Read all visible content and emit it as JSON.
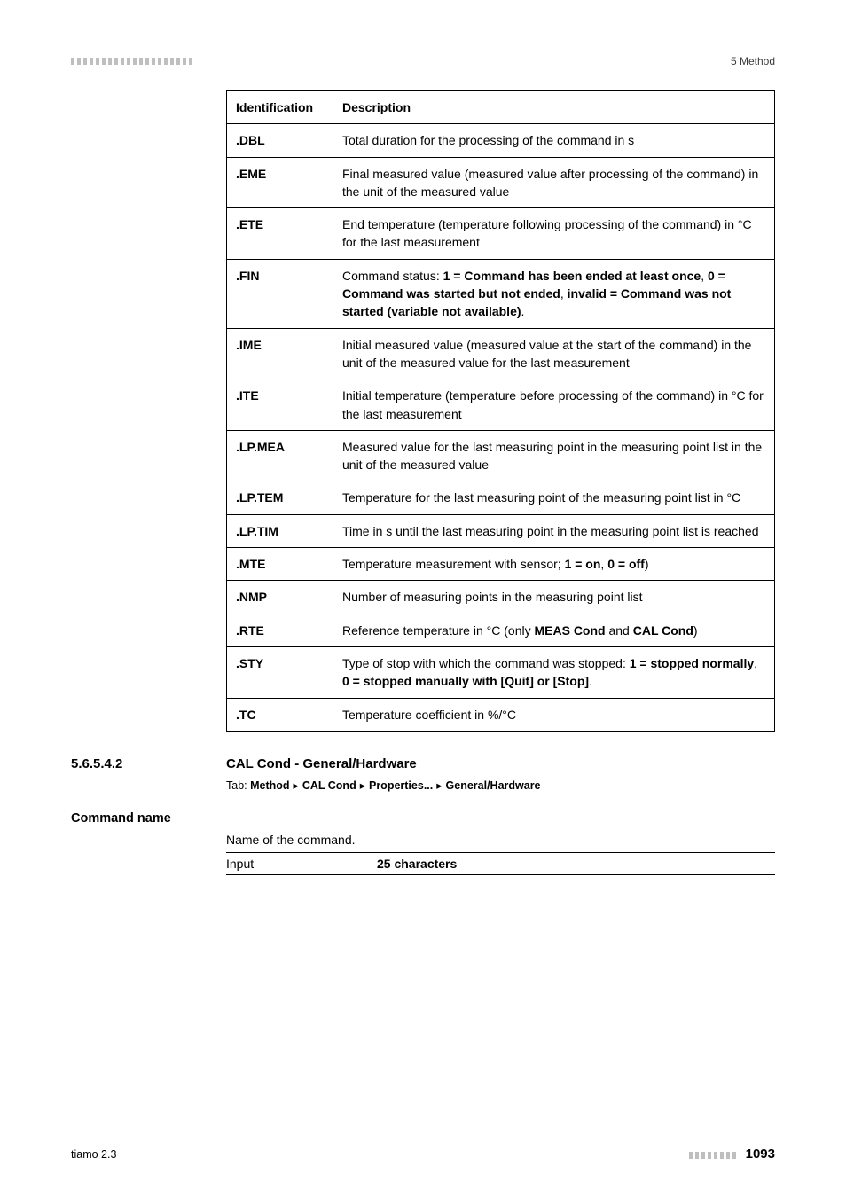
{
  "header": {
    "section_label": "5 Method"
  },
  "table": {
    "columns": [
      "Identification",
      "Description"
    ],
    "rows": [
      {
        "id": ".DBL",
        "desc": [
          {
            "t": "Total duration for the processing of the command in s"
          }
        ]
      },
      {
        "id": ".EME",
        "desc": [
          {
            "t": "Final measured value (measured value after processing of the command) in the unit of the measured value"
          }
        ]
      },
      {
        "id": ".ETE",
        "desc": [
          {
            "t": "End temperature (temperature following processing of the command) in °C for the last measurement"
          }
        ]
      },
      {
        "id": ".FIN",
        "desc": [
          {
            "t": "Command status: "
          },
          {
            "t": "1 = Command has been ended at least once",
            "b": true
          },
          {
            "t": ", "
          },
          {
            "t": "0 = Command was started but not ended",
            "b": true
          },
          {
            "t": ", "
          },
          {
            "t": "invalid = Command was not started (variable not available)",
            "b": true
          },
          {
            "t": "."
          }
        ]
      },
      {
        "id": ".IME",
        "desc": [
          {
            "t": "Initial measured value (measured value at the start of the command) in the unit of the measured value for the last measurement"
          }
        ]
      },
      {
        "id": ".ITE",
        "desc": [
          {
            "t": "Initial temperature (temperature before processing of the command) in °C for the last measurement"
          }
        ]
      },
      {
        "id": ".LP.MEA",
        "desc": [
          {
            "t": "Measured value for the last measuring point in the measuring point list in the unit of the measured value"
          }
        ]
      },
      {
        "id": ".LP.TEM",
        "desc": [
          {
            "t": "Temperature for the last measuring point of the measuring point list in °C"
          }
        ]
      },
      {
        "id": ".LP.TIM",
        "desc": [
          {
            "t": "Time in s until the last measuring point in the measuring point list is reached"
          }
        ]
      },
      {
        "id": ".MTE",
        "desc": [
          {
            "t": "Temperature measurement with sensor; "
          },
          {
            "t": "1 = on",
            "b": true
          },
          {
            "t": ", "
          },
          {
            "t": "0 = off",
            "b": true
          },
          {
            "t": ")"
          }
        ]
      },
      {
        "id": ".NMP",
        "desc": [
          {
            "t": "Number of measuring points in the measuring point list"
          }
        ]
      },
      {
        "id": ".RTE",
        "desc": [
          {
            "t": "Reference temperature in °C (only "
          },
          {
            "t": "MEAS Cond",
            "b": true
          },
          {
            "t": " and "
          },
          {
            "t": "CAL Cond",
            "b": true
          },
          {
            "t": ")"
          }
        ]
      },
      {
        "id": ".STY",
        "desc": [
          {
            "t": "Type of stop with which the command was stopped: "
          },
          {
            "t": "1 = stopped normally",
            "b": true
          },
          {
            "t": ", "
          },
          {
            "t": "0 = stopped manually with [Quit] or [Stop]",
            "b": true
          },
          {
            "t": "."
          }
        ]
      },
      {
        "id": ".TC",
        "desc": [
          {
            "t": "Temperature coefficient in %/°C"
          }
        ]
      }
    ]
  },
  "subsection": {
    "number": "5.6.5.4.2",
    "title": "CAL Cond - General/Hardware",
    "tab_prefix": "Tab: ",
    "breadcrumb": [
      "Method",
      "CAL Cond",
      "Properties...",
      "General/Hardware"
    ]
  },
  "param": {
    "name": "Command name",
    "desc": "Name of the command.",
    "io_label": "Input",
    "io_value": "25 characters"
  },
  "footer": {
    "left": "tiamo 2.3",
    "pagenum": "1093"
  },
  "colors": {
    "text": "#000000",
    "stripe": "#bfbfbf",
    "bg": "#ffffff"
  }
}
